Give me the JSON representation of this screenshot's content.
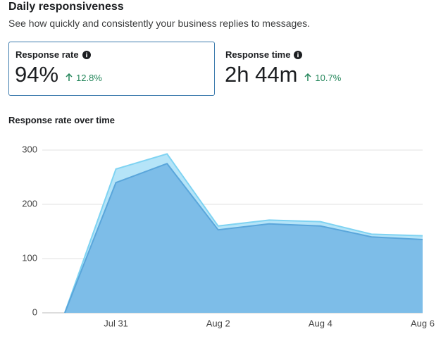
{
  "header": {
    "title": "Daily responsiveness",
    "subtitle": "See how quickly and consistently your business replies to messages."
  },
  "metrics": [
    {
      "label": "Response rate",
      "value": "94%",
      "change": "12.8%"
    },
    {
      "label": "Response time",
      "value": "2h 44m",
      "change": "10.7%"
    }
  ],
  "chart_data": {
    "type": "area",
    "title": "Response rate over time",
    "categories": [
      null,
      "Jul 31",
      null,
      "Aug 2",
      null,
      "Aug 4",
      null,
      "Aug 6"
    ],
    "series": [
      {
        "color": "#b5e4f8",
        "values": [
          0,
          265,
          293,
          160,
          171,
          168,
          145,
          142
        ]
      },
      {
        "color": "#7dbde8",
        "values": [
          0,
          240,
          275,
          153,
          164,
          160,
          140,
          135
        ]
      }
    ],
    "ylim": [
      0,
      300
    ],
    "yticks": [
      0,
      100,
      200,
      300
    ],
    "grid": true
  }
}
